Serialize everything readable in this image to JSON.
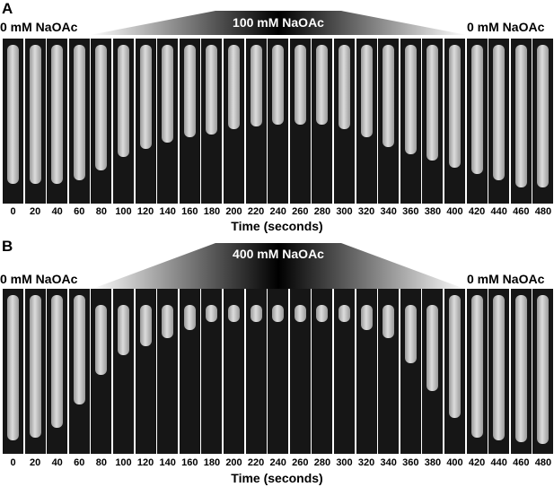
{
  "panels": [
    {
      "letter": "A",
      "left_condition": "0 mM NaOAc",
      "peak_condition": "100 mM NaOAc",
      "right_condition": "0 mM NaOAc",
      "time_labels": [
        "0",
        "20",
        "40",
        "60",
        "80",
        "100",
        "120",
        "140",
        "160",
        "180",
        "200",
        "220",
        "240",
        "260",
        "280",
        "300",
        "320",
        "340",
        "360",
        "380",
        "400",
        "420",
        "440",
        "460",
        "480"
      ],
      "axis_title": "Time (seconds)",
      "cell_top_fraction": [
        0.04,
        0.04,
        0.04,
        0.04,
        0.04,
        0.04,
        0.04,
        0.04,
        0.04,
        0.04,
        0.04,
        0.04,
        0.04,
        0.04,
        0.04,
        0.04,
        0.04,
        0.04,
        0.04,
        0.04,
        0.04,
        0.04,
        0.04,
        0.04,
        0.04
      ],
      "cell_bottom_fraction": [
        0.88,
        0.88,
        0.88,
        0.86,
        0.8,
        0.72,
        0.67,
        0.63,
        0.6,
        0.58,
        0.55,
        0.53,
        0.52,
        0.52,
        0.52,
        0.55,
        0.6,
        0.66,
        0.7,
        0.74,
        0.78,
        0.82,
        0.86,
        0.9,
        0.9
      ]
    },
    {
      "letter": "B",
      "left_condition": "0 mM NaOAc",
      "peak_condition": "400 mM NaOAc",
      "right_condition": "0 mM NaOAc",
      "time_labels": [
        "0",
        "20",
        "40",
        "60",
        "80",
        "100",
        "120",
        "140",
        "160",
        "180",
        "200",
        "220",
        "240",
        "260",
        "280",
        "300",
        "320",
        "340",
        "360",
        "380",
        "400",
        "420",
        "440",
        "460",
        "480"
      ],
      "axis_title": "Time (seconds)",
      "cell_top_fraction": [
        0.04,
        0.04,
        0.04,
        0.04,
        0.1,
        0.1,
        0.1,
        0.1,
        0.1,
        0.1,
        0.1,
        0.1,
        0.1,
        0.1,
        0.1,
        0.1,
        0.1,
        0.1,
        0.1,
        0.1,
        0.04,
        0.04,
        0.04,
        0.04,
        0.04
      ],
      "cell_bottom_fraction": [
        0.92,
        0.9,
        0.84,
        0.7,
        0.52,
        0.4,
        0.35,
        0.3,
        0.25,
        0.2,
        0.2,
        0.2,
        0.2,
        0.2,
        0.2,
        0.2,
        0.25,
        0.3,
        0.45,
        0.62,
        0.78,
        0.9,
        0.92,
        0.93,
        0.94
      ]
    }
  ],
  "colors": {
    "frame_background": "#161616",
    "cell_fill": "#dcdcdc",
    "ramp_dark": "#000000",
    "ramp_light": "#ffffff"
  }
}
